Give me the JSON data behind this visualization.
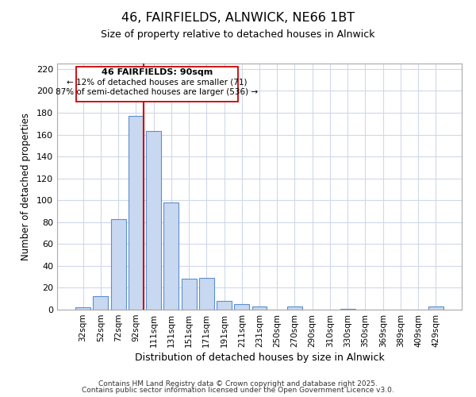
{
  "title": "46, FAIRFIELDS, ALNWICK, NE66 1BT",
  "subtitle": "Size of property relative to detached houses in Alnwick",
  "xlabel": "Distribution of detached houses by size in Alnwick",
  "ylabel": "Number of detached properties",
  "categories": [
    "32sqm",
    "52sqm",
    "72sqm",
    "92sqm",
    "111sqm",
    "131sqm",
    "151sqm",
    "171sqm",
    "191sqm",
    "211sqm",
    "231sqm",
    "250sqm",
    "270sqm",
    "290sqm",
    "310sqm",
    "330sqm",
    "350sqm",
    "369sqm",
    "389sqm",
    "409sqm",
    "429sqm"
  ],
  "values": [
    2,
    12,
    83,
    177,
    163,
    98,
    28,
    29,
    8,
    5,
    3,
    0,
    3,
    0,
    0,
    1,
    0,
    0,
    0,
    0,
    3
  ],
  "bar_color": "#c8d8f0",
  "bar_edge_color": "#5b8fcf",
  "vline_color": "#cc0000",
  "annotation_title": "46 FAIRFIELDS: 90sqm",
  "annotation_line1": "← 12% of detached houses are smaller (71)",
  "annotation_line2": "87% of semi-detached houses are larger (536) →",
  "ylim": [
    0,
    225
  ],
  "yticks": [
    0,
    20,
    40,
    60,
    80,
    100,
    120,
    140,
    160,
    180,
    200,
    220
  ],
  "footer1": "Contains HM Land Registry data © Crown copyright and database right 2025.",
  "footer2": "Contains public sector information licensed under the Open Government Licence v3.0.",
  "bg_color": "#ffffff",
  "grid_color": "#d0d8e8"
}
